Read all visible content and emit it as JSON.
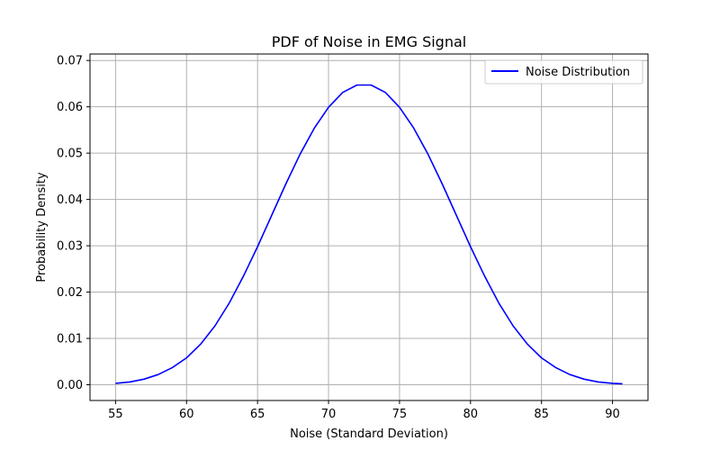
{
  "chart_data": {
    "type": "line",
    "title": "PDF of Noise in EMG Signal",
    "xlabel": "Noise (Standard Deviation)",
    "ylabel": "Probability Density",
    "xlim": [
      53.2,
      92.5
    ],
    "ylim": [
      -0.0034,
      0.0714
    ],
    "xticks": [
      55,
      60,
      65,
      70,
      75,
      80,
      85,
      90
    ],
    "xtick_labels": [
      "55",
      "60",
      "65",
      "70",
      "75",
      "80",
      "85",
      "90"
    ],
    "yticks": [
      0.0,
      0.01,
      0.02,
      0.03,
      0.04,
      0.05,
      0.06,
      0.07
    ],
    "ytick_labels": [
      "0.00",
      "0.01",
      "0.02",
      "0.03",
      "0.04",
      "0.05",
      "0.06",
      "0.07"
    ],
    "grid": true,
    "legend_position": "top-right",
    "series": [
      {
        "name": "Noise Distribution",
        "color": "#0000ff",
        "x": [
          55.0,
          56.0,
          57.0,
          58.0,
          59.0,
          60.0,
          61.0,
          62.0,
          63.0,
          64.0,
          65.0,
          66.0,
          67.0,
          68.0,
          69.0,
          70.0,
          71.0,
          72.0,
          73.0,
          74.0,
          75.0,
          76.0,
          77.0,
          78.0,
          79.0,
          80.0,
          81.0,
          82.0,
          83.0,
          84.0,
          85.0,
          86.0,
          87.0,
          88.0,
          89.0,
          90.0,
          90.7
        ],
        "y": [
          0.0003,
          0.0006,
          0.0012,
          0.0022,
          0.0037,
          0.0058,
          0.0088,
          0.0127,
          0.0176,
          0.0234,
          0.0298,
          0.0366,
          0.0434,
          0.0498,
          0.0554,
          0.0599,
          0.0631,
          0.0647,
          0.0647,
          0.0631,
          0.0599,
          0.0554,
          0.0498,
          0.0434,
          0.0366,
          0.0298,
          0.0234,
          0.0176,
          0.0127,
          0.0088,
          0.0058,
          0.0037,
          0.0022,
          0.0012,
          0.0006,
          0.0003,
          0.0002
        ]
      }
    ]
  }
}
